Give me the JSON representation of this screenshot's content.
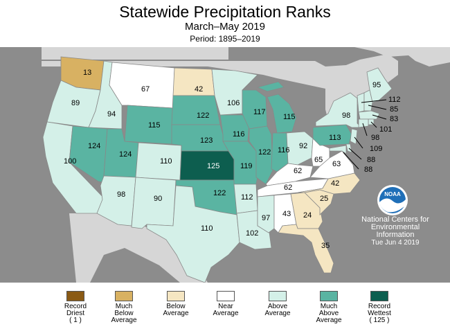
{
  "header": {
    "title": "Statewide Precipitation Ranks",
    "subtitle": "March–May 2019",
    "period": "Period: 1895–2019"
  },
  "credit": {
    "line1": "National Centers for",
    "line2": "Environmental",
    "line3": "Information",
    "date": "Tue Jun  4 2019",
    "logo_text": "NOAA"
  },
  "colors": {
    "record_driest": "#8a5a14",
    "much_below": "#d8b162",
    "below": "#f5e6c2",
    "near": "#ffffff",
    "above": "#d4f0e8",
    "much_above": "#5ab4a2",
    "record_wettest": "#0d5e4f",
    "background": "#8c8c8c",
    "land": "#dcdcdc"
  },
  "legend": [
    {
      "id": "record-driest",
      "lines": [
        "Record",
        "Driest",
        "( 1 )"
      ],
      "color_key": "record_driest"
    },
    {
      "id": "much-below",
      "lines": [
        "Much",
        "Below",
        "Average"
      ],
      "color_key": "much_below"
    },
    {
      "id": "below",
      "lines": [
        "Below",
        "Average"
      ],
      "color_key": "below"
    },
    {
      "id": "near",
      "lines": [
        "Near",
        "Average"
      ],
      "color_key": "near"
    },
    {
      "id": "above",
      "lines": [
        "Above",
        "Average"
      ],
      "color_key": "above"
    },
    {
      "id": "much-above",
      "lines": [
        "Much",
        "Above",
        "Average"
      ],
      "color_key": "much_above"
    },
    {
      "id": "record-wettest",
      "lines": [
        "Record",
        "Wettest",
        "( 125 )"
      ],
      "color_key": "record_wettest"
    }
  ],
  "states": [
    {
      "state": "WA",
      "rank": "13",
      "category": "much_below"
    },
    {
      "state": "OR",
      "rank": "89",
      "category": "above"
    },
    {
      "state": "CA",
      "rank": "100",
      "category": "above"
    },
    {
      "state": "ID",
      "rank": "94",
      "category": "above"
    },
    {
      "state": "NV",
      "rank": "124",
      "category": "much_above"
    },
    {
      "state": "MT",
      "rank": "67",
      "category": "near"
    },
    {
      "state": "WY",
      "rank": "115",
      "category": "much_above"
    },
    {
      "state": "UT",
      "rank": "124",
      "category": "much_above"
    },
    {
      "state": "AZ",
      "rank": "98",
      "category": "above"
    },
    {
      "state": "CO",
      "rank": "110",
      "category": "above"
    },
    {
      "state": "NM",
      "rank": "90",
      "category": "above"
    },
    {
      "state": "ND",
      "rank": "42",
      "category": "below"
    },
    {
      "state": "SD",
      "rank": "122",
      "category": "much_above"
    },
    {
      "state": "NE",
      "rank": "123",
      "category": "much_above"
    },
    {
      "state": "KS",
      "rank": "125",
      "category": "record_wettest"
    },
    {
      "state": "OK",
      "rank": "122",
      "category": "much_above"
    },
    {
      "state": "TX",
      "rank": "110",
      "category": "above"
    },
    {
      "state": "MN",
      "rank": "106",
      "category": "above"
    },
    {
      "state": "IA",
      "rank": "116",
      "category": "much_above"
    },
    {
      "state": "MO",
      "rank": "119",
      "category": "much_above"
    },
    {
      "state": "AR",
      "rank": "112",
      "category": "above"
    },
    {
      "state": "LA",
      "rank": "102",
      "category": "above"
    },
    {
      "state": "WI",
      "rank": "117",
      "category": "much_above"
    },
    {
      "state": "IL",
      "rank": "122",
      "category": "much_above"
    },
    {
      "state": "MI",
      "rank": "115",
      "category": "much_above"
    },
    {
      "state": "IN",
      "rank": "116",
      "category": "much_above"
    },
    {
      "state": "OH",
      "rank": "92",
      "category": "above"
    },
    {
      "state": "KY",
      "rank": "62",
      "category": "near"
    },
    {
      "state": "TN",
      "rank": "62",
      "category": "near"
    },
    {
      "state": "MS",
      "rank": "97",
      "category": "above"
    },
    {
      "state": "AL",
      "rank": "43",
      "category": "near"
    },
    {
      "state": "GA",
      "rank": "24",
      "category": "below"
    },
    {
      "state": "FL",
      "rank": "35",
      "category": "below"
    },
    {
      "state": "SC",
      "rank": "25",
      "category": "below"
    },
    {
      "state": "NC",
      "rank": "42",
      "category": "below"
    },
    {
      "state": "VA",
      "rank": "63",
      "category": "near"
    },
    {
      "state": "WV",
      "rank": "65",
      "category": "near"
    },
    {
      "state": "PA",
      "rank": "113",
      "category": "much_above"
    },
    {
      "state": "NY",
      "rank": "98",
      "category": "above"
    },
    {
      "state": "ME",
      "rank": "95",
      "category": "above"
    },
    {
      "state": "VT",
      "rank": "112",
      "category": "above"
    },
    {
      "state": "NH",
      "rank": "85",
      "category": "above"
    },
    {
      "state": "MA",
      "rank": "83",
      "category": "above"
    },
    {
      "state": "RI",
      "rank": "101",
      "category": "above"
    },
    {
      "state": "CT",
      "rank": "98",
      "category": "above"
    },
    {
      "state": "NJ",
      "rank": "109",
      "category": "above"
    },
    {
      "state": "DE",
      "rank": "88",
      "category": "above"
    },
    {
      "state": "MD",
      "rank": "88",
      "category": "above"
    }
  ]
}
